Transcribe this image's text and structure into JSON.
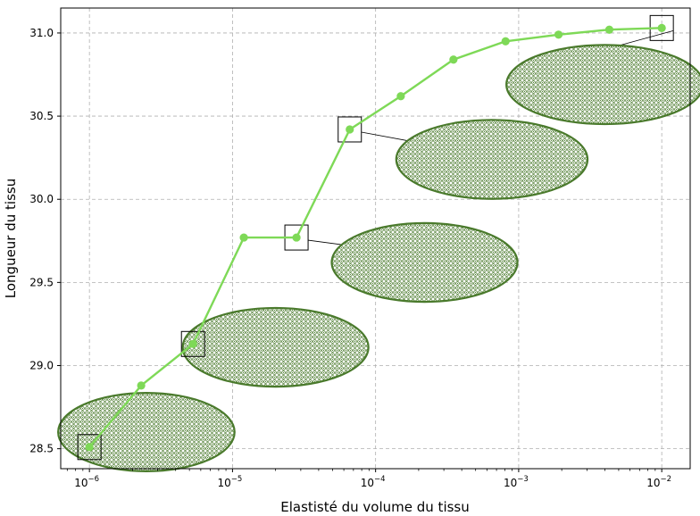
{
  "chart_data": {
    "type": "line",
    "xlabel": "Elastisté du volume du tissu",
    "ylabel": "Longueur du tissu",
    "xscale": "log",
    "xlim": [
      6.3e-07,
      0.0158
    ],
    "ylim": [
      28.38,
      31.15
    ],
    "grid": true,
    "series_color": "#7ed957",
    "inset_color": "#4a7a2c",
    "x_ticks": [
      {
        "value": 1e-06,
        "base": "10",
        "exp": "−6"
      },
      {
        "value": 1e-05,
        "base": "10",
        "exp": "−5"
      },
      {
        "value": 0.0001,
        "base": "10",
        "exp": "−4"
      },
      {
        "value": 0.001,
        "base": "10",
        "exp": "−3"
      },
      {
        "value": 0.01,
        "base": "10",
        "exp": "−2"
      }
    ],
    "y_ticks": [
      {
        "value": 28.5,
        "label": "28.5"
      },
      {
        "value": 29.0,
        "label": "29.0"
      },
      {
        "value": 29.5,
        "label": "29.5"
      },
      {
        "value": 30.0,
        "label": "30.0"
      },
      {
        "value": 30.5,
        "label": "30.5"
      },
      {
        "value": 31.0,
        "label": "31.0"
      }
    ],
    "series": [
      {
        "x": [
          1e-06,
          2.3e-06,
          5.3e-06,
          1.2e-05,
          2.8e-05,
          6.6e-05,
          0.00015,
          0.00035,
          0.00081,
          0.0019,
          0.0043,
          0.01
        ],
        "values": [
          28.51,
          28.88,
          29.13,
          29.77,
          29.77,
          30.42,
          30.62,
          30.84,
          30.95,
          30.99,
          31.02,
          31.03
        ]
      }
    ],
    "highlighted_points": [
      0,
      2,
      4,
      5,
      11
    ],
    "insets": [
      {
        "point_index": 0,
        "center_x": 2.5e-06,
        "center_y": 28.6,
        "length_scale": 0.95
      },
      {
        "point_index": 2,
        "center_x": 2e-05,
        "center_y": 29.11,
        "length_scale": 1.0
      },
      {
        "point_index": 4,
        "center_x": 0.00022,
        "center_y": 29.62,
        "length_scale": 1.0
      },
      {
        "point_index": 5,
        "center_x": 0.00065,
        "center_y": 30.24,
        "length_scale": 1.03
      },
      {
        "point_index": 11,
        "center_x": 0.004,
        "center_y": 30.69,
        "length_scale": 1.06
      }
    ]
  }
}
